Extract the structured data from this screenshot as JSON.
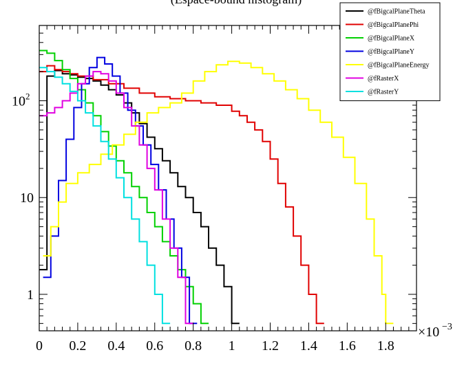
{
  "chart_data": {
    "type": "line",
    "title": "(Espace-bound histogram)",
    "xlabel": "",
    "ylabel": "",
    "x_exponent_label": "×10",
    "x_exponent_power": "−3",
    "xlim": [
      0,
      1.96
    ],
    "ylim": [
      0.42,
      600
    ],
    "yscale": "log",
    "grid": false,
    "legend_position": "top-right",
    "x_ticks": [
      0,
      0.2,
      0.4,
      0.6,
      0.8,
      1,
      1.2,
      1.4,
      1.6,
      1.8
    ],
    "x_tick_labels": [
      "0",
      "0.2",
      "0.4",
      "0.6",
      "0.8",
      "1",
      "1.2",
      "1.4",
      "1.6",
      "1.8"
    ],
    "y_major_ticks": [
      1,
      10,
      100
    ],
    "y_tick_labels": [
      {
        "value": 1,
        "base": "1",
        "exp": ""
      },
      {
        "value": 10,
        "base": "10",
        "exp": ""
      },
      {
        "value": 100,
        "base": "10",
        "exp": "2"
      }
    ],
    "series": [
      {
        "name": "@fBigcalPlaneTheta",
        "color": "#000000",
        "x": [
          0,
          0.04,
          0.08,
          0.12,
          0.16,
          0.2,
          0.24,
          0.28,
          0.32,
          0.36,
          0.4,
          0.44,
          0.48,
          0.52,
          0.56,
          0.6,
          0.64,
          0.68,
          0.72,
          0.76,
          0.8,
          0.84,
          0.88,
          0.92,
          0.96,
          1.0
        ],
        "y": [
          1.8,
          180,
          205,
          190,
          185,
          175,
          170,
          160,
          145,
          130,
          115,
          95,
          75,
          58,
          42,
          32,
          24,
          18,
          13,
          10,
          7,
          5,
          3,
          2,
          1.2,
          0.5
        ]
      },
      {
        "name": "@fBigcalPlanePhi",
        "color": "#e00000",
        "x": [
          0,
          0.04,
          0.08,
          0.12,
          0.16,
          0.2,
          0.28,
          0.36,
          0.44,
          0.52,
          0.6,
          0.68,
          0.76,
          0.84,
          0.92,
          1.0,
          1.04,
          1.08,
          1.12,
          1.16,
          1.2,
          1.24,
          1.28,
          1.32,
          1.36,
          1.4,
          1.44
        ],
        "y": [
          200,
          230,
          210,
          200,
          190,
          180,
          165,
          150,
          135,
          120,
          110,
          105,
          100,
          95,
          90,
          78,
          70,
          60,
          50,
          38,
          25,
          14,
          8,
          4,
          2,
          1,
          0.5
        ]
      },
      {
        "name": "@fBigcalPlaneX",
        "color": "#00d000",
        "x": [
          0,
          0.04,
          0.08,
          0.12,
          0.16,
          0.2,
          0.24,
          0.28,
          0.32,
          0.36,
          0.4,
          0.44,
          0.48,
          0.52,
          0.56,
          0.6,
          0.64,
          0.68,
          0.72,
          0.76,
          0.8,
          0.84
        ],
        "y": [
          330,
          310,
          260,
          210,
          170,
          130,
          95,
          70,
          48,
          34,
          24,
          18,
          13,
          10,
          7,
          5,
          3.5,
          2.5,
          1.8,
          1.2,
          0.8,
          0.5
        ]
      },
      {
        "name": "@fBigcalPlaneY",
        "color": "#0000e0",
        "x": [
          0.02,
          0.06,
          0.1,
          0.14,
          0.18,
          0.22,
          0.26,
          0.3,
          0.34,
          0.38,
          0.42,
          0.46,
          0.5,
          0.54,
          0.58,
          0.62,
          0.66,
          0.7,
          0.74,
          0.78
        ],
        "y": [
          1.5,
          4,
          15,
          40,
          85,
          150,
          220,
          280,
          240,
          180,
          120,
          80,
          55,
          35,
          22,
          12,
          6,
          3,
          1.5,
          0.5
        ]
      },
      {
        "name": "@fBigcalPlaneEnergy",
        "color": "#ffff00",
        "x": [
          0.02,
          0.06,
          0.1,
          0.14,
          0.2,
          0.26,
          0.32,
          0.38,
          0.44,
          0.5,
          0.56,
          0.62,
          0.68,
          0.74,
          0.8,
          0.86,
          0.92,
          0.98,
          1.04,
          1.1,
          1.16,
          1.22,
          1.28,
          1.34,
          1.4,
          1.46,
          1.52,
          1.58,
          1.64,
          1.7,
          1.74,
          1.78,
          1.8
        ],
        "y": [
          2.5,
          5,
          9,
          14,
          18,
          22,
          28,
          35,
          45,
          60,
          75,
          85,
          95,
          120,
          160,
          200,
          235,
          255,
          245,
          220,
          190,
          160,
          130,
          105,
          80,
          60,
          42,
          26,
          14,
          6,
          2.5,
          1,
          0.5
        ]
      },
      {
        "name": "@fRasterX",
        "color": "#e000e0",
        "x": [
          0,
          0.04,
          0.08,
          0.12,
          0.16,
          0.2,
          0.24,
          0.28,
          0.32,
          0.36,
          0.4,
          0.44,
          0.48,
          0.52,
          0.56,
          0.6,
          0.64,
          0.68,
          0.72,
          0.76
        ],
        "y": [
          70,
          75,
          85,
          100,
          120,
          150,
          180,
          200,
          190,
          160,
          120,
          85,
          55,
          35,
          20,
          12,
          6,
          3,
          1.5,
          0.5
        ]
      },
      {
        "name": "@fRasterY",
        "color": "#00e0e0",
        "x": [
          0,
          0.04,
          0.08,
          0.12,
          0.16,
          0.2,
          0.24,
          0.28,
          0.32,
          0.36,
          0.4,
          0.44,
          0.48,
          0.52,
          0.56,
          0.6,
          0.64
        ],
        "y": [
          220,
          200,
          175,
          150,
          125,
          100,
          75,
          55,
          38,
          25,
          16,
          10,
          6,
          3.5,
          2,
          1,
          0.5
        ]
      }
    ]
  }
}
